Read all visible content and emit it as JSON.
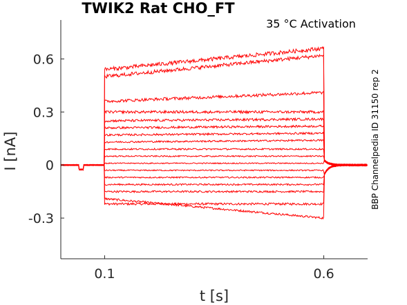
{
  "chart_data": {
    "type": "line",
    "title": "TWIK2  Rat  CHO_FT",
    "subtitle": "35 °C  Activation",
    "xlabel": "t [s]",
    "ylabel": "I [nA]",
    "side_label": "BBP Channelpedia ID 31150 rep 2",
    "xlim": [
      0.0,
      0.7
    ],
    "ylim": [
      -0.53,
      0.82
    ],
    "x_ticks": [
      0.1,
      0.6
    ],
    "x_tick_labels": [
      "0.1",
      "0.6"
    ],
    "y_ticks": [
      -0.3,
      0,
      0.3,
      0.6
    ],
    "y_tick_labels": [
      "-0.3",
      "0",
      "0.3",
      "0.6"
    ],
    "grid": false,
    "legend": "none",
    "color": "#ff0000",
    "pulse_start_s": 0.1,
    "pulse_end_s": 0.6,
    "series": [
      {
        "start": -0.22,
        "end": -0.22
      },
      {
        "start": -0.19,
        "end": -0.3
      },
      {
        "start": -0.15,
        "end": -0.15
      },
      {
        "start": -0.11,
        "end": -0.11
      },
      {
        "start": -0.07,
        "end": -0.07
      },
      {
        "start": -0.03,
        "end": -0.03
      },
      {
        "start": 0.01,
        "end": 0.01
      },
      {
        "start": 0.05,
        "end": 0.05
      },
      {
        "start": 0.09,
        "end": 0.09
      },
      {
        "start": 0.13,
        "end": 0.14
      },
      {
        "start": 0.17,
        "end": 0.18
      },
      {
        "start": 0.21,
        "end": 0.22
      },
      {
        "start": 0.25,
        "end": 0.26
      },
      {
        "start": 0.3,
        "end": 0.3
      },
      {
        "start": 0.36,
        "end": 0.41
      },
      {
        "start": 0.5,
        "end": 0.62
      },
      {
        "start": 0.54,
        "end": 0.66
      }
    ]
  }
}
